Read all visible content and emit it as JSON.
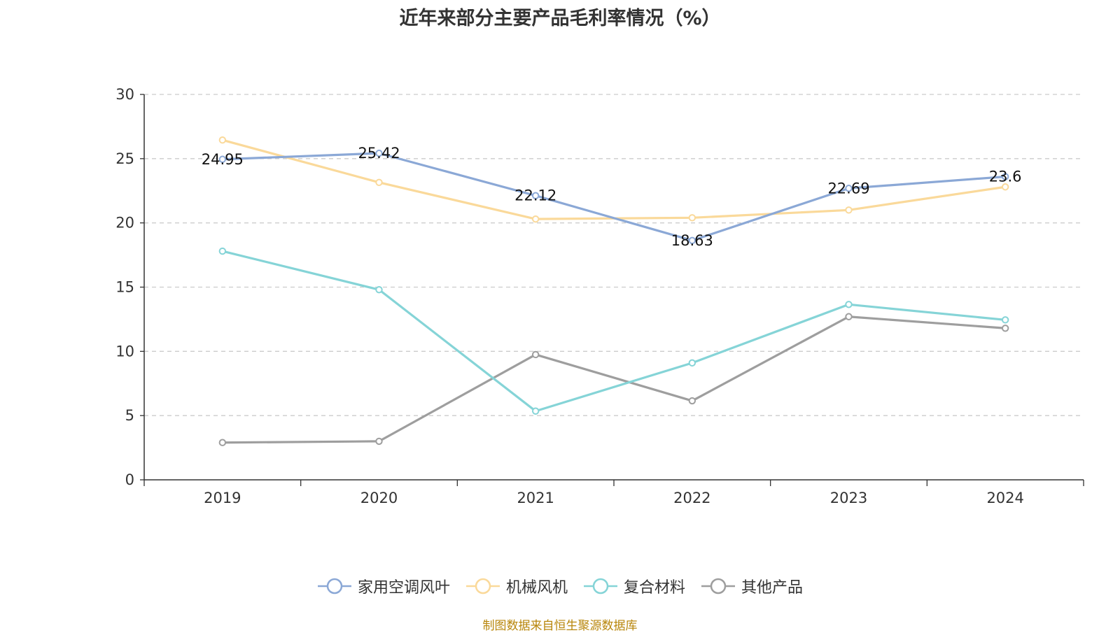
{
  "chart_data": {
    "type": "line",
    "title": "近年来部分主要产品毛利率情况（%）",
    "categories": [
      "2019",
      "2020",
      "2021",
      "2022",
      "2023",
      "2024"
    ],
    "ylim": [
      0,
      30
    ],
    "yticks": [
      0,
      5,
      10,
      15,
      20,
      25,
      30
    ],
    "grid": true,
    "legend_position": "bottom",
    "series": [
      {
        "name": "家用空调风叶",
        "color": "#8ba8d6",
        "values": [
          24.95,
          25.42,
          22.12,
          18.63,
          22.69,
          23.6
        ],
        "labels": [
          "24.95",
          "25.42",
          "22.12",
          "18.63",
          "22.69",
          "23.6"
        ]
      },
      {
        "name": "机械风机",
        "color": "#fad99a",
        "values": [
          26.45,
          23.15,
          20.3,
          20.4,
          21.0,
          22.8
        ]
      },
      {
        "name": "复合材料",
        "color": "#85d4d7",
        "values": [
          17.8,
          14.8,
          5.35,
          9.1,
          13.65,
          12.45
        ]
      },
      {
        "name": "其他产品",
        "color": "#9e9e9e",
        "values": [
          2.9,
          3.0,
          9.75,
          6.15,
          12.7,
          11.8
        ]
      }
    ]
  },
  "source": "制图数据来自恒生聚源数据库"
}
